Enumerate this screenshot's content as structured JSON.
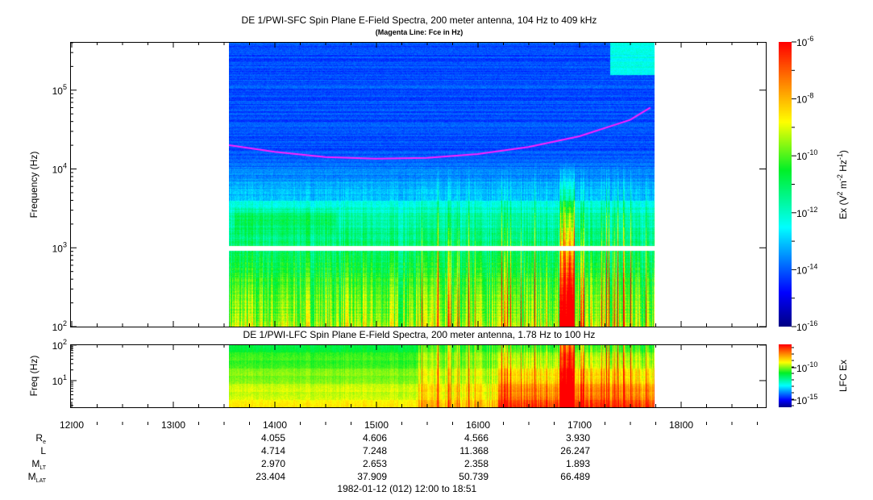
{
  "chart_data": [
    {
      "type": "heatmap",
      "title": "DE 1/PWI-SFC  Spin Plane E-Field Spectra, 200 meter antenna, 104 Hz to 409 kHz",
      "subtitle": "(Magenta Line: Fce in Hz)",
      "ylabel": "Frequency (Hz)",
      "yscale": "log",
      "ylim": [
        100,
        409000
      ],
      "yticks": [
        {
          "v": 100,
          "m": "2"
        },
        {
          "v": 1000,
          "m": "3"
        },
        {
          "v": 10000,
          "m": "4"
        },
        {
          "v": 100000,
          "m": "5"
        }
      ],
      "data_time_range_hours": [
        13.55,
        17.74
      ],
      "colorbar": {
        "label": "Ex (V",
        "label_full": "Ex (V2 m-2 Hz-1)",
        "range_log10": [
          -16,
          -6
        ],
        "ticks": [
          "-16",
          "-14",
          "-12",
          "-10",
          "-8",
          "-6"
        ]
      },
      "fce_line": {
        "color": "#ff20ff",
        "time_hours": [
          13.55,
          14.0,
          14.5,
          15.0,
          15.5,
          16.0,
          16.5,
          17.0,
          17.5,
          17.7
        ],
        "freq_hz": [
          20000,
          16500,
          14200,
          13500,
          13800,
          15500,
          19000,
          26000,
          42000,
          60000
        ]
      }
    },
    {
      "type": "heatmap",
      "title": "DE 1/PWI-LFC  Spin Plane E-Field Spectra, 200 meter antenna, 1.78 Hz to 100 Hz",
      "ylabel": "Freq (Hz)",
      "yscale": "log",
      "ylim": [
        1.78,
        100
      ],
      "yticks": [
        {
          "v": 10,
          "m": "1"
        },
        {
          "v": 100,
          "m": "2"
        }
      ],
      "data_time_range_hours": [
        13.55,
        17.74
      ],
      "colorbar": {
        "label": "LFC Ex",
        "range_log10": [
          -17,
          -6
        ],
        "ticks": [
          "-15",
          "-10"
        ]
      }
    }
  ],
  "xaxis": {
    "ticks": [
      "12:00",
      "13:00",
      "14:00",
      "15:00",
      "16:00",
      "17:00",
      "18:00"
    ],
    "range_hours": [
      12.0,
      18.85
    ]
  },
  "ephemeris": {
    "rows": [
      {
        "label": "R",
        "sub": "e",
        "values": [
          "4.055",
          "4.606",
          "4.566",
          "3.930"
        ]
      },
      {
        "label": "L",
        "sub": "",
        "values": [
          "4.714",
          "7.248",
          "11.368",
          "26.247"
        ]
      },
      {
        "label": "M",
        "sub": "LT",
        "values": [
          "2.970",
          "2.653",
          "2.358",
          "1.893"
        ]
      },
      {
        "label": "M",
        "sub": "LAT",
        "values": [
          "23.404",
          "37.909",
          "50.739",
          "66.489"
        ]
      }
    ],
    "times": [
      "14:00",
      "15:00",
      "16:00",
      "17:00"
    ]
  },
  "footer": "1982-01-12 (012) 12:00 to 18:51"
}
